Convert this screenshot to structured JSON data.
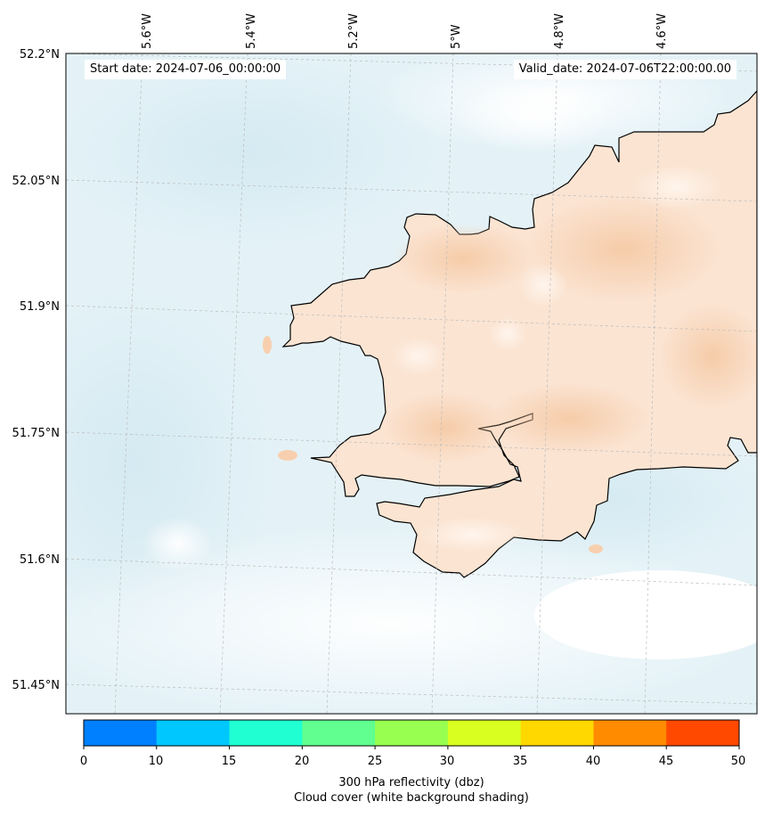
{
  "map": {
    "start_date": "Start date: 2024-07-06_00:00:00",
    "valid_date": "Valid_date: 2024-07-06T22:00:00.00",
    "lon_labels": [
      "5.6°W",
      "5.4°W",
      "5.2°W",
      "5°W",
      "4.8°W",
      "4.6°W"
    ],
    "lat_labels": [
      "52.2°N",
      "52.05°N",
      "51.9°N",
      "51.75°N",
      "51.6°N",
      "51.45°N"
    ]
  },
  "colorbar": {
    "ticks": [
      "0",
      "10",
      "15",
      "20",
      "25",
      "30",
      "35",
      "40",
      "45",
      "50"
    ],
    "colors": [
      "#0080ff",
      "#00c8ff",
      "#20ffd2",
      "#60ff90",
      "#98ff50",
      "#d8ff20",
      "#ffd800",
      "#ff8c00",
      "#ff4800"
    ],
    "label": "300 hPa reflectivity (dbz)",
    "sublabel": "Cloud cover (white background shading)"
  },
  "colors": {
    "sea_cloud": "#e4f2f7",
    "land": "#fbe4d2",
    "coast": "#000000",
    "grid": "#bbbbbb"
  }
}
